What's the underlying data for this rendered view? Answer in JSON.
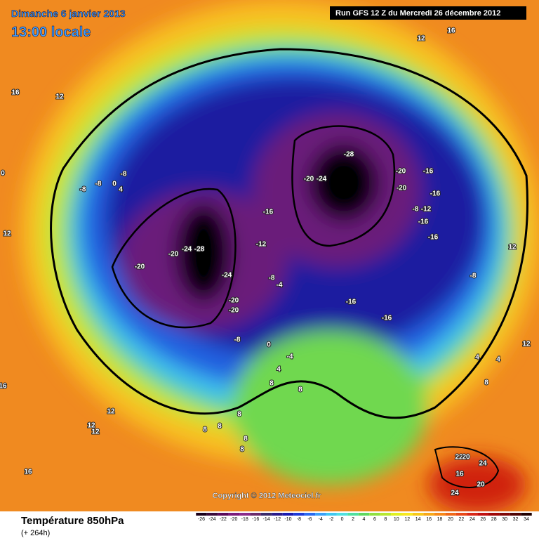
{
  "header": {
    "date": "Dimanche 6 janvier 2013",
    "time": "13:00 locale",
    "run": "Run GFS 12 Z du Mercredi 26 décembre 2012"
  },
  "copyright": "Copyright © 2012 Meteociel.fr",
  "footer": {
    "title": "Température 850hPa",
    "subtitle": "(+ 264h)"
  },
  "contour_labels": [
    12,
    16,
    16,
    12,
    0,
    -8,
    -8,
    -8,
    0,
    4,
    -28,
    -20,
    -24,
    -20,
    -16,
    -20,
    -16,
    -8,
    -12,
    -16,
    -16,
    -16,
    -12,
    -20,
    -24,
    -28,
    -20,
    -24,
    -8,
    -4,
    -16,
    -20,
    -20,
    -16,
    -8,
    0,
    -4,
    4,
    8,
    8,
    -8,
    12,
    12,
    12,
    4,
    4,
    8,
    16,
    12,
    12,
    12,
    8,
    8,
    8,
    8,
    8,
    16,
    16,
    22,
    20,
    24,
    20,
    24
  ],
  "legend": {
    "ticks": [
      -26,
      -24,
      -22,
      -20,
      -18,
      -16,
      -14,
      -12,
      -10,
      -8,
      -6,
      -4,
      -2,
      0,
      2,
      4,
      6,
      8,
      10,
      12,
      14,
      16,
      18,
      20,
      22,
      24,
      26,
      28,
      30,
      32,
      34
    ],
    "colors": [
      "#1a001a",
      "#3a0a3a",
      "#5a0a5a",
      "#7a1a7a",
      "#8a2a8a",
      "#6a2a6a",
      "#3a2a6a",
      "#2a1a8a",
      "#1a1ab0",
      "#1e3ad8",
      "#2a6af0",
      "#3aa0f8",
      "#40c8f0",
      "#50e0e0",
      "#50e0a0",
      "#60d860",
      "#90e040",
      "#b8e830",
      "#e0f020",
      "#f8e820",
      "#f8c818",
      "#f8a818",
      "#f88818",
      "#f06818",
      "#e84818",
      "#d82818",
      "#c01010",
      "#a00808",
      "#800808",
      "#500404",
      "#200000"
    ]
  }
}
